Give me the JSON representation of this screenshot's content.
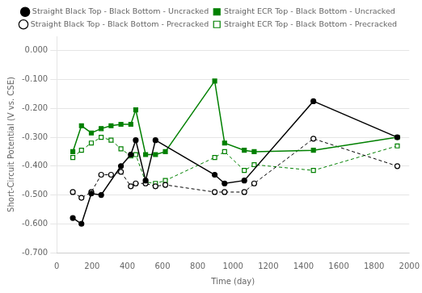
{
  "chart_data": {
    "type": "line",
    "xlabel": "Time (day)",
    "ylabel": "Short-Circuit Potential (V vs. CSE)",
    "xlim": [
      0,
      2000
    ],
    "ylim": [
      -0.7,
      0.05
    ],
    "xticks": [
      0,
      200,
      400,
      600,
      800,
      1000,
      1200,
      1400,
      1600,
      1800,
      2000
    ],
    "yticks": [
      {
        "value": 0.0,
        "label": "0.000"
      },
      {
        "value": -0.1,
        "label": "-0.100"
      },
      {
        "value": -0.2,
        "label": "-0.200"
      },
      {
        "value": -0.3,
        "label": "-0.300"
      },
      {
        "value": -0.4,
        "label": "-0.400"
      },
      {
        "value": -0.5,
        "label": "-0.500"
      },
      {
        "value": -0.6,
        "label": "-0.600"
      },
      {
        "value": -0.7,
        "label": "-0.700"
      }
    ],
    "grid": "y",
    "legend": "top",
    "series": [
      {
        "name": "Straight Black Top - Black Bottom - Uncracked",
        "color": "#000000",
        "marker": "circle",
        "line_style": "solid",
        "x": [
          91,
          140,
          196,
          252,
          364,
          420,
          448,
          504,
          560,
          896,
          952,
          1064,
          1456,
          1932
        ],
        "values": [
          -0.58,
          -0.6,
          -0.495,
          -0.5,
          -0.4,
          -0.36,
          -0.31,
          -0.45,
          -0.31,
          -0.43,
          -0.46,
          -0.45,
          -0.175,
          -0.3
        ]
      },
      {
        "name": "Straight ECR Top - Black Bottom - Uncracked",
        "color": "#008000",
        "marker": "square",
        "line_style": "solid",
        "x": [
          91,
          140,
          196,
          252,
          308,
          364,
          420,
          448,
          504,
          560,
          616,
          896,
          952,
          1064,
          1120,
          1456,
          1932
        ],
        "values": [
          -0.35,
          -0.26,
          -0.285,
          -0.27,
          -0.26,
          -0.255,
          -0.255,
          -0.205,
          -0.36,
          -0.36,
          -0.35,
          -0.105,
          -0.32,
          -0.345,
          -0.35,
          -0.345,
          -0.3
        ]
      },
      {
        "name": "Straight Black Top - Black Bottom - Precracked",
        "color": "#000000",
        "marker": "open_circle",
        "line_style": "dashed",
        "x": [
          91,
          140,
          196,
          252,
          308,
          364,
          420,
          448,
          504,
          560,
          616,
          896,
          952,
          1064,
          1120,
          1456,
          1932
        ],
        "values": [
          -0.49,
          -0.51,
          -0.49,
          -0.43,
          -0.43,
          -0.42,
          -0.47,
          -0.46,
          -0.46,
          -0.47,
          -0.465,
          -0.49,
          -0.49,
          -0.49,
          -0.46,
          -0.305,
          -0.4
        ]
      },
      {
        "name": "Straight ECR Top - Black Bottom - Precracked",
        "color": "#008000",
        "marker": "open_square",
        "line_style": "dashed",
        "x": [
          91,
          140,
          196,
          252,
          308,
          364,
          420,
          448,
          504,
          560,
          616,
          896,
          952,
          1064,
          1120,
          1456,
          1932
        ],
        "values": [
          -0.37,
          -0.345,
          -0.32,
          -0.3,
          -0.31,
          -0.34,
          -0.365,
          -0.36,
          -0.455,
          -0.46,
          -0.45,
          -0.37,
          -0.35,
          -0.415,
          -0.395,
          -0.415,
          -0.33
        ]
      }
    ]
  }
}
